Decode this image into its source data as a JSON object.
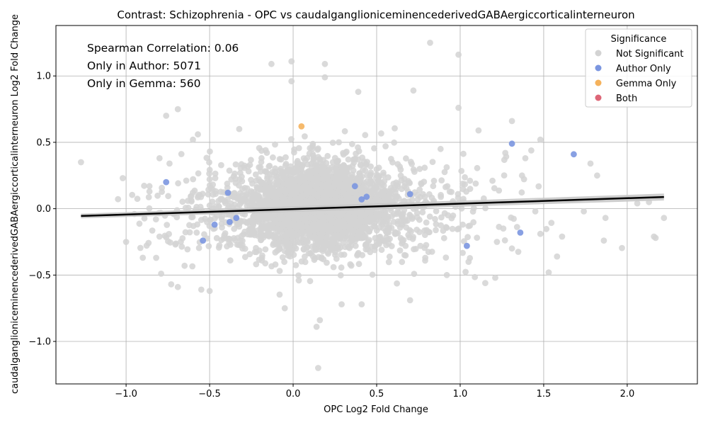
{
  "chart_data": {
    "type": "scatter",
    "title": "Contrast: Schizophrenia - OPC vs caudalganglioniceminencederivedGABAergiccorticalinterneuron",
    "xlabel": "OPC Log2 Fold Change",
    "ylabel": "caudalganglioniceminencederivedGABAergiccorticalinterneuron Log2 Fold Change",
    "xlim": [
      -1.42,
      2.42
    ],
    "ylim": [
      -1.32,
      1.38
    ],
    "xticks": [
      -1.0,
      -0.5,
      0.0,
      0.5,
      1.0,
      1.5,
      2.0
    ],
    "xtick_labels": [
      "−1.0",
      "−0.5",
      "0.0",
      "0.5",
      "1.0",
      "1.5",
      "2.0"
    ],
    "yticks": [
      -1.0,
      -0.5,
      0.0,
      0.5,
      1.0
    ],
    "ytick_labels": [
      "−1.0",
      "−0.5",
      "0.0",
      "0.5",
      "1.0"
    ],
    "grid": true,
    "stats": [
      "Spearman Correlation: 0.06",
      "Only in Author: 5071",
      "Only in Gemma: 560"
    ],
    "legend": {
      "title": "Significance",
      "placement": "upper right",
      "entries": [
        {
          "label": "Not Significant",
          "color": "#d3d3d3"
        },
        {
          "label": "Author Only",
          "color": "#7b96e0"
        },
        {
          "label": "Gemma Only",
          "color": "#f5b25c"
        },
        {
          "label": "Both",
          "color": "#dd6677"
        }
      ]
    },
    "regression": {
      "x": [
        -1.27,
        2.22
      ],
      "y": [
        -0.055,
        0.088
      ],
      "ci_halfwidth": [
        0.018,
        0.026
      ],
      "color": "#000000",
      "band_color": "#c8c8c8"
    },
    "series": [
      {
        "name": "Author Only",
        "color": "#7b96e0",
        "points": [
          {
            "x": -0.76,
            "y": 0.2
          },
          {
            "x": -0.54,
            "y": -0.24
          },
          {
            "x": -0.47,
            "y": -0.12
          },
          {
            "x": -0.39,
            "y": 0.12
          },
          {
            "x": -0.38,
            "y": -0.1
          },
          {
            "x": -0.34,
            "y": -0.07
          },
          {
            "x": 0.37,
            "y": 0.17
          },
          {
            "x": 0.41,
            "y": 0.07
          },
          {
            "x": 0.44,
            "y": 0.09
          },
          {
            "x": 0.7,
            "y": 0.11
          },
          {
            "x": 1.04,
            "y": -0.28
          },
          {
            "x": 1.31,
            "y": 0.49
          },
          {
            "x": 1.36,
            "y": -0.18
          },
          {
            "x": 1.68,
            "y": 0.41
          }
        ]
      },
      {
        "name": "Gemma Only",
        "color": "#f5b25c",
        "points": [
          {
            "x": 0.05,
            "y": 0.62
          }
        ]
      },
      {
        "name": "Not Significant",
        "color": "#d3d3d3",
        "outliers": [
          {
            "x": -1.27,
            "y": 0.35
          },
          {
            "x": -1.02,
            "y": 0.23
          },
          {
            "x": -1.0,
            "y": -0.25
          },
          {
            "x": -0.95,
            "y": -0.04
          },
          {
            "x": -0.86,
            "y": 0.17
          },
          {
            "x": -0.86,
            "y": 0.13
          },
          {
            "x": -0.82,
            "y": -0.37
          },
          {
            "x": -0.8,
            "y": -0.21
          },
          {
            "x": -0.8,
            "y": 0.38
          },
          {
            "x": -0.76,
            "y": 0.7
          },
          {
            "x": -0.74,
            "y": 0.34
          },
          {
            "x": -0.73,
            "y": -0.57
          },
          {
            "x": -0.69,
            "y": 0.75
          },
          {
            "x": -0.69,
            "y": -0.59
          },
          {
            "x": -0.65,
            "y": -0.43
          },
          {
            "x": -0.6,
            "y": 0.52
          },
          {
            "x": -0.57,
            "y": 0.56
          },
          {
            "x": -0.55,
            "y": -0.61
          },
          {
            "x": -0.5,
            "y": -0.62
          },
          {
            "x": 0.15,
            "y": -1.2
          },
          {
            "x": 0.14,
            "y": -0.89
          },
          {
            "x": 0.16,
            "y": -0.84
          },
          {
            "x": -0.13,
            "y": 1.09
          },
          {
            "x": -0.01,
            "y": 1.11
          },
          {
            "x": 0.19,
            "y": 1.09
          },
          {
            "x": 0.19,
            "y": 0.99
          },
          {
            "x": 0.82,
            "y": 1.25
          },
          {
            "x": 0.99,
            "y": 1.16
          },
          {
            "x": -0.01,
            "y": 0.96
          },
          {
            "x": 0.39,
            "y": 0.88
          },
          {
            "x": 0.72,
            "y": 0.89
          },
          {
            "x": 0.99,
            "y": 0.76
          },
          {
            "x": 1.11,
            "y": 0.59
          },
          {
            "x": 1.31,
            "y": 0.66
          },
          {
            "x": 1.27,
            "y": 0.42
          },
          {
            "x": 1.39,
            "y": 0.38
          },
          {
            "x": 1.48,
            "y": 0.52
          },
          {
            "x": 1.37,
            "y": 0.25
          },
          {
            "x": 1.53,
            "y": -0.48
          },
          {
            "x": 1.58,
            "y": -0.36
          },
          {
            "x": 1.61,
            "y": -0.21
          },
          {
            "x": 1.74,
            "y": -0.02
          },
          {
            "x": 1.78,
            "y": 0.34
          },
          {
            "x": 1.82,
            "y": 0.25
          },
          {
            "x": 1.86,
            "y": -0.24
          },
          {
            "x": 1.87,
            "y": -0.07
          },
          {
            "x": 2.06,
            "y": 0.04
          },
          {
            "x": 2.13,
            "y": 0.05
          },
          {
            "x": 2.16,
            "y": -0.21
          },
          {
            "x": 2.17,
            "y": -0.22
          },
          {
            "x": 2.22,
            "y": -0.07
          },
          {
            "x": 1.45,
            "y": -0.02
          },
          {
            "x": 1.48,
            "y": -0.19
          },
          {
            "x": 1.31,
            "y": -0.3
          },
          {
            "x": 1.21,
            "y": -0.52
          },
          {
            "x": 1.15,
            "y": -0.56
          },
          {
            "x": 0.7,
            "y": -0.69
          },
          {
            "x": 0.29,
            "y": -0.72
          },
          {
            "x": 0.41,
            "y": -0.72
          },
          {
            "x": -0.05,
            "y": -0.75
          },
          {
            "x": 1.22,
            "y": -0.25
          },
          {
            "x": 1.05,
            "y": -0.4
          },
          {
            "x": 0.92,
            "y": -0.5
          }
        ]
      }
    ]
  }
}
